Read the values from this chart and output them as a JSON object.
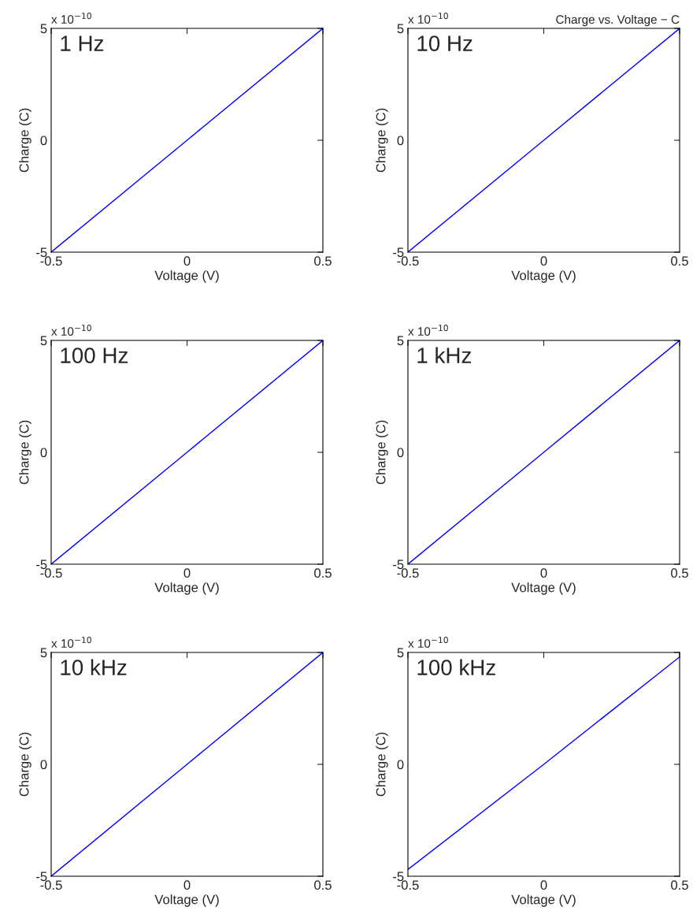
{
  "chart_data": [
    {
      "type": "line",
      "title": "1 Hz",
      "xlabel": "Voltage (V)",
      "ylabel": "Charge (C)",
      "annotations": [
        "x 10$^{−10}$"
      ],
      "x": [
        -0.5,
        0,
        0.5
      ],
      "series": [
        {
          "color": "#0000ff",
          "values": [
            -5,
            0,
            5
          ]
        }
      ],
      "xlim": [
        -0.5,
        0.5
      ],
      "ylim": [
        -5,
        5
      ],
      "xticks": [
        -0.5,
        0,
        0.5
      ],
      "yticks": [
        -5,
        0,
        5
      ],
      "grid": false,
      "legend": false
    },
    {
      "type": "line",
      "title": "10 Hz",
      "xlabel": "Voltage (V)",
      "ylabel": "Charge (C)",
      "annotations": [
        "x 10$^{−10}$",
        "Charge vs. Voltage − C"
      ],
      "x": [
        -0.5,
        0,
        0.5
      ],
      "series": [
        {
          "color": "#0000ff",
          "values": [
            -5,
            0,
            5
          ]
        }
      ],
      "xlim": [
        -0.5,
        0.5
      ],
      "ylim": [
        -5,
        5
      ],
      "xticks": [
        -0.5,
        0,
        0.5
      ],
      "yticks": [
        -5,
        0,
        5
      ],
      "grid": false,
      "legend": false
    },
    {
      "type": "line",
      "title": "100 Hz",
      "xlabel": "Voltage (V)",
      "ylabel": "Charge (C)",
      "annotations": [
        "x 10$^{−10}$"
      ],
      "x": [
        -0.5,
        0,
        0.5
      ],
      "series": [
        {
          "color": "#0000ff",
          "values": [
            -5,
            0,
            5
          ]
        }
      ],
      "xlim": [
        -0.5,
        0.5
      ],
      "ylim": [
        -5,
        5
      ],
      "xticks": [
        -0.5,
        0,
        0.5
      ],
      "yticks": [
        -5,
        0,
        5
      ],
      "grid": false,
      "legend": false
    },
    {
      "type": "line",
      "title": "1 kHz",
      "xlabel": "Voltage (V)",
      "ylabel": "Charge (C)",
      "annotations": [
        "x 10$^{−10}$"
      ],
      "x": [
        -0.5,
        0,
        0.5
      ],
      "series": [
        {
          "color": "#0000ff",
          "values": [
            -5,
            0,
            5
          ]
        }
      ],
      "xlim": [
        -0.5,
        0.5
      ],
      "ylim": [
        -5,
        5
      ],
      "xticks": [
        -0.5,
        0,
        0.5
      ],
      "yticks": [
        -5,
        0,
        5
      ],
      "grid": false,
      "legend": false
    },
    {
      "type": "line",
      "title": "10 kHz",
      "xlabel": "Voltage (V)",
      "ylabel": "Charge (C)",
      "annotations": [
        "x 10$^{−10}$"
      ],
      "x": [
        -0.5,
        0,
        0.5
      ],
      "series": [
        {
          "color": "#0000ff",
          "values": [
            -5,
            0,
            5
          ]
        }
      ],
      "xlim": [
        -0.5,
        0.5
      ],
      "ylim": [
        -5,
        5
      ],
      "xticks": [
        -0.5,
        0,
        0.5
      ],
      "yticks": [
        -5,
        0,
        5
      ],
      "grid": false,
      "legend": false
    },
    {
      "type": "line",
      "title": "100 kHz",
      "xlabel": "Voltage (V)",
      "ylabel": "Charge (C)",
      "annotations": [
        "x 10$^{−10}$"
      ],
      "x": [
        -0.5,
        0,
        0.5
      ],
      "series": [
        {
          "color": "#0000ff",
          "values": [
            -4.7,
            0,
            4.8
          ]
        }
      ],
      "xlim": [
        -0.5,
        0.5
      ],
      "ylim": [
        -5,
        5
      ],
      "xticks": [
        -0.5,
        0,
        0.5
      ],
      "yticks": [
        -5,
        0,
        5
      ],
      "grid": false,
      "legend": false
    }
  ]
}
